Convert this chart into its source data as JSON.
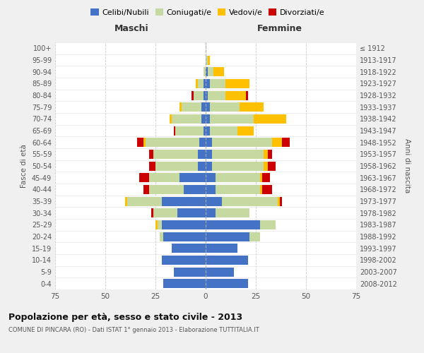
{
  "age_groups": [
    "0-4",
    "5-9",
    "10-14",
    "15-19",
    "20-24",
    "25-29",
    "30-34",
    "35-39",
    "40-44",
    "45-49",
    "50-54",
    "55-59",
    "60-64",
    "65-69",
    "70-74",
    "75-79",
    "80-84",
    "85-89",
    "90-94",
    "95-99",
    "100+"
  ],
  "birth_years": [
    "2008-2012",
    "2003-2007",
    "1998-2002",
    "1993-1997",
    "1988-1992",
    "1983-1987",
    "1978-1982",
    "1973-1977",
    "1968-1972",
    "1963-1967",
    "1958-1962",
    "1953-1957",
    "1948-1952",
    "1943-1947",
    "1938-1942",
    "1933-1937",
    "1928-1932",
    "1923-1927",
    "1918-1922",
    "1913-1917",
    "≤ 1912"
  ],
  "maschi": {
    "celibi": [
      21,
      16,
      22,
      17,
      21,
      22,
      14,
      22,
      11,
      13,
      4,
      4,
      3,
      1,
      2,
      2,
      1,
      1,
      0,
      0,
      0
    ],
    "coniugati": [
      0,
      0,
      0,
      0,
      2,
      2,
      12,
      17,
      17,
      15,
      21,
      22,
      27,
      14,
      15,
      10,
      5,
      3,
      1,
      0,
      0
    ],
    "vedovi": [
      0,
      0,
      0,
      0,
      0,
      1,
      0,
      1,
      0,
      0,
      0,
      0,
      1,
      0,
      1,
      1,
      0,
      1,
      0,
      0,
      0
    ],
    "divorziati": [
      0,
      0,
      0,
      0,
      0,
      0,
      1,
      0,
      3,
      5,
      3,
      2,
      3,
      1,
      0,
      0,
      1,
      0,
      0,
      0,
      0
    ]
  },
  "femmine": {
    "nubili": [
      21,
      14,
      21,
      16,
      22,
      27,
      5,
      8,
      5,
      5,
      3,
      3,
      3,
      2,
      2,
      2,
      1,
      2,
      1,
      0,
      0
    ],
    "coniugate": [
      0,
      0,
      0,
      0,
      5,
      8,
      17,
      28,
      22,
      22,
      26,
      26,
      30,
      14,
      22,
      15,
      9,
      8,
      3,
      1,
      0
    ],
    "vedove": [
      0,
      0,
      0,
      0,
      0,
      0,
      0,
      1,
      1,
      1,
      2,
      2,
      5,
      8,
      16,
      12,
      10,
      12,
      5,
      1,
      0
    ],
    "divorziate": [
      0,
      0,
      0,
      0,
      0,
      0,
      0,
      1,
      5,
      4,
      4,
      2,
      4,
      0,
      0,
      0,
      1,
      0,
      0,
      0,
      0
    ]
  },
  "colors": {
    "celibi": "#4472c4",
    "coniugati": "#c5d9a0",
    "vedovi": "#ffc000",
    "divorziati": "#cc0000"
  },
  "xlim": 75,
  "title": "Popolazione per età, sesso e stato civile - 2013",
  "subtitle": "COMUNE DI PINCARA (RO) - Dati ISTAT 1° gennaio 2013 - Elaborazione TUTTITALIA.IT",
  "ylabel_left": "Fasce di età",
  "ylabel_right": "Anni di nascita",
  "xlabel_left": "Maschi",
  "xlabel_right": "Femmine",
  "bg_color": "#f0f0f0",
  "plot_bg": "#ffffff"
}
